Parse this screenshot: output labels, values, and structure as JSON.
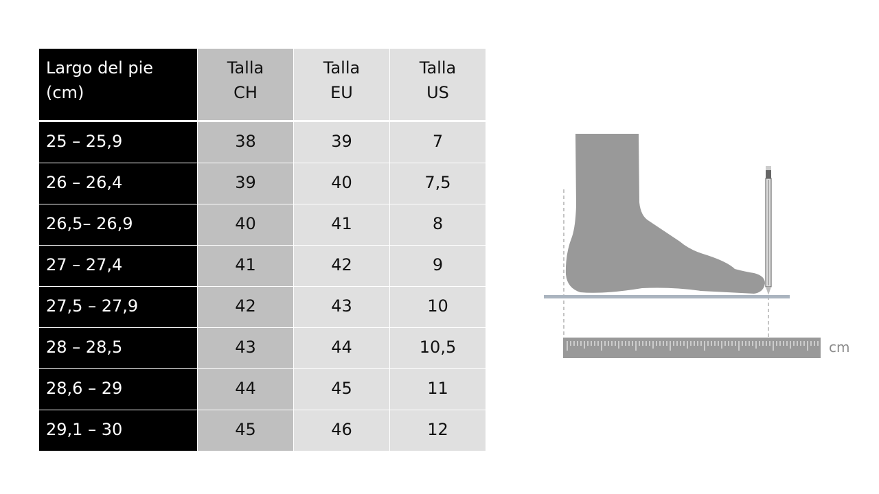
{
  "table": {
    "headers": [
      {
        "line1": "Largo del pie",
        "line2": "(cm)"
      },
      {
        "line1": "Talla",
        "line2": "CH"
      },
      {
        "line1": "Talla",
        "line2": "EU"
      },
      {
        "line1": "Talla",
        "line2": "US"
      }
    ],
    "rows": [
      [
        "25 – 25,9",
        "38",
        "39",
        "7"
      ],
      [
        "26 – 26,4",
        "39",
        "40",
        "7,5"
      ],
      [
        "26,5– 26,9",
        "40",
        "41",
        "8"
      ],
      [
        "27 – 27,4",
        "41",
        "42",
        "9"
      ],
      [
        "27,5 – 27,9",
        "42",
        "43",
        "10"
      ],
      [
        "28 – 28,5",
        "43",
        "44",
        "10,5"
      ],
      [
        "28,6 – 29",
        "44",
        "45",
        "11"
      ],
      [
        "29,1 – 30",
        "45",
        "46",
        "12"
      ]
    ]
  },
  "illustration": {
    "unit_label": "cm",
    "icons": [
      "foot-icon",
      "pencil-icon",
      "ruler-icon"
    ],
    "colors": {
      "foot": "#999999",
      "floor": "#aab4bf",
      "ruler": "#999999"
    }
  }
}
